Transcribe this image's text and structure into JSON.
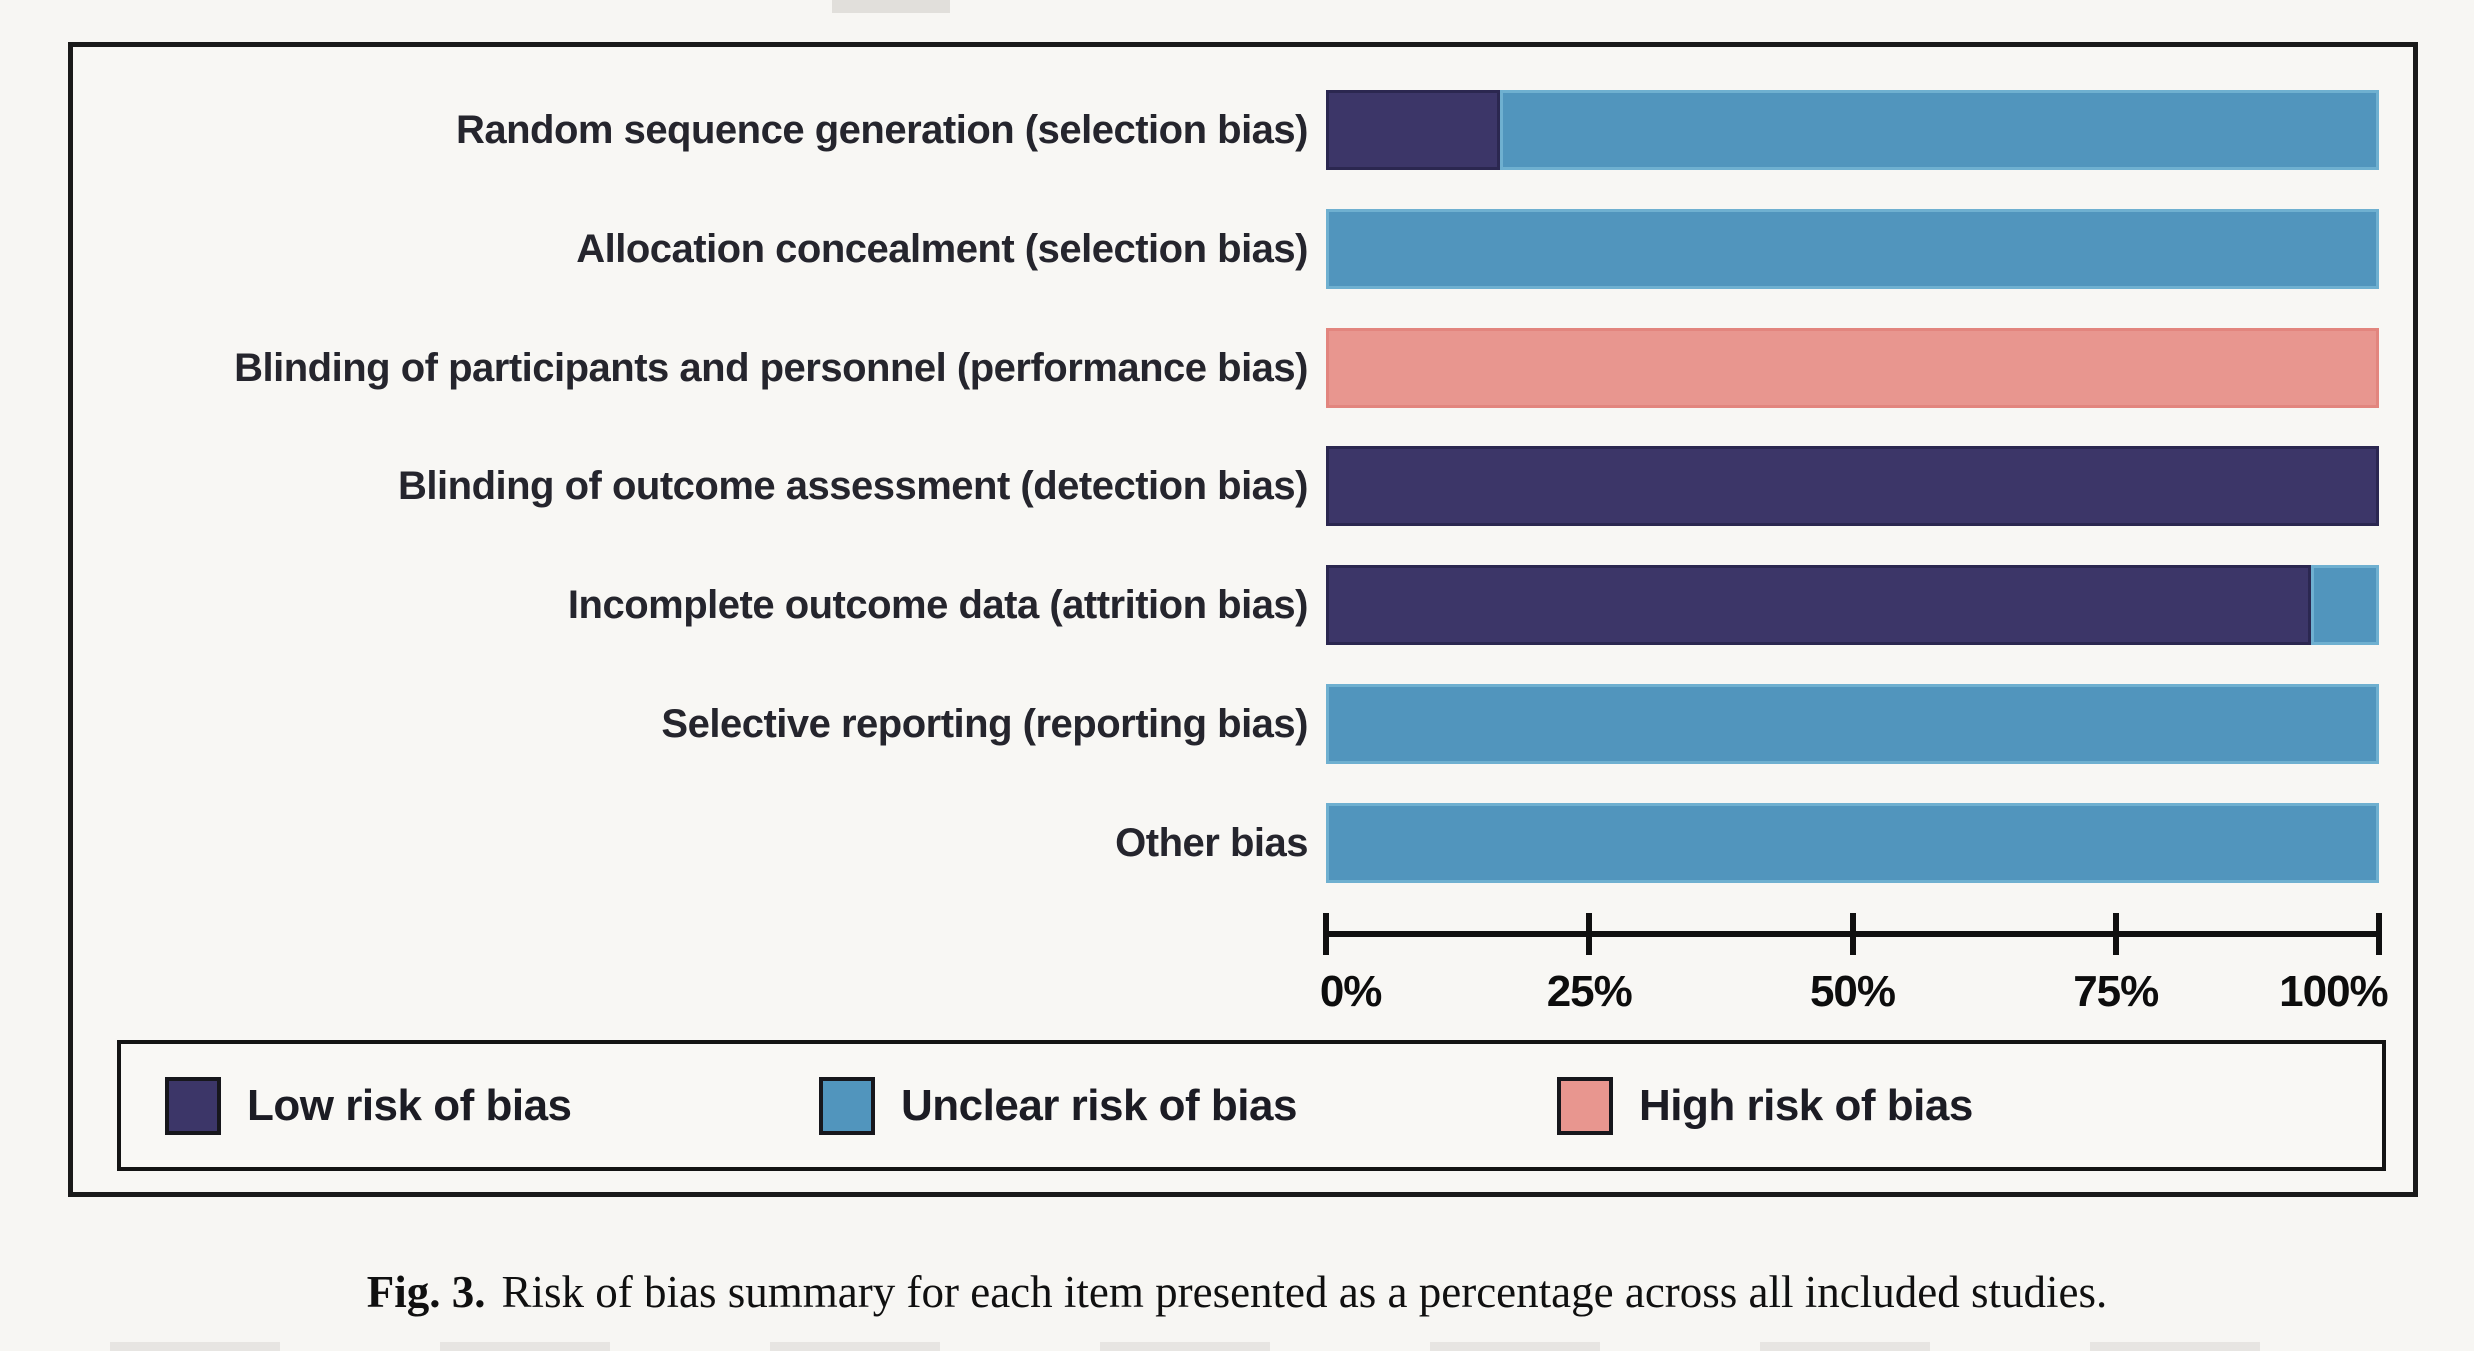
{
  "caption": {
    "prefix": "Fig. 3.",
    "text": "Risk of bias summary for each item presented as a percentage across all included studies."
  },
  "colors": {
    "low_risk": "#3c3668",
    "unclear_risk": "#5195bd",
    "high_risk": "#e8968f",
    "frame_border": "#1a1a1a",
    "background": "#f8f7f4"
  },
  "chart_data": {
    "type": "bar",
    "orientation": "horizontal",
    "stacked": true,
    "title": "",
    "xlabel": "",
    "ylabel": "",
    "xlim": [
      0,
      100
    ],
    "x_tick_labels": [
      "0%",
      "25%",
      "50%",
      "75%",
      "100%"
    ],
    "grid": false,
    "legend_position": "bottom",
    "categories": [
      "Random sequence generation (selection bias)",
      "Allocation concealment (selection bias)",
      "Blinding of participants and personnel (performance bias)",
      "Blinding of outcome assessment (detection bias)",
      "Incomplete outcome data (attrition bias)",
      "Selective reporting (reporting bias)",
      "Other bias"
    ],
    "series": [
      {
        "name": "Low risk of bias",
        "key": "low",
        "color": "#3c3668",
        "values": [
          16.5,
          0,
          0,
          100,
          93.5,
          0,
          0
        ]
      },
      {
        "name": "Unclear risk of bias",
        "key": "unclear",
        "color": "#5195bd",
        "values": [
          83.5,
          100,
          0,
          0,
          6.5,
          100,
          100
        ]
      },
      {
        "name": "High risk of bias",
        "key": "high",
        "color": "#e8968f",
        "values": [
          0,
          0,
          100,
          0,
          0,
          0,
          0
        ]
      }
    ]
  }
}
